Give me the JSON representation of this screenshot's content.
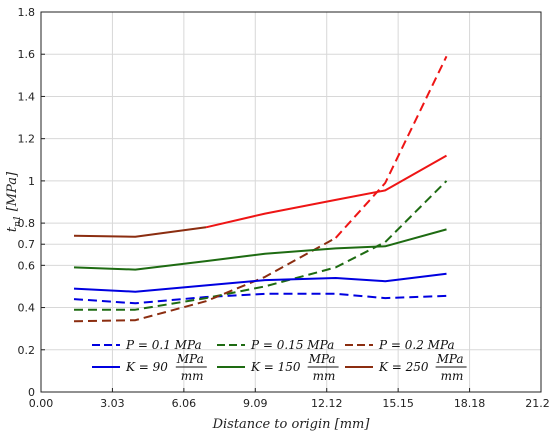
{
  "chart_data": {
    "type": "line",
    "title": "",
    "xlabel": "Distance to origin [mm]",
    "ylabel_main": "t",
    "ylabel_sub": "n1",
    "ylabel_unit": "[MPa]",
    "xlim": [
      0,
      21.21
    ],
    "ylim": [
      0,
      1.8
    ],
    "x_ticks": [
      "0.00",
      "3.03",
      "6.06",
      "9.09",
      "12.12",
      "15.15",
      "18.18",
      "21.21"
    ],
    "x_tick_values": [
      0,
      3.03,
      6.06,
      9.09,
      12.12,
      15.15,
      18.18,
      21.21
    ],
    "y_ticks": [
      "0",
      "0.2",
      "0.4",
      "0.6",
      "0.7",
      "0.8",
      "1",
      "1.2",
      "1.4",
      "1.6",
      "1.8"
    ],
    "y_tick_values": [
      0,
      0.2,
      0.4,
      0.6,
      0.7,
      0.8,
      1.0,
      1.2,
      1.4,
      1.6,
      1.8
    ],
    "grid": true,
    "legend_position": "bottom-left",
    "series": [
      {
        "name": "P = 0.1 MPa",
        "legend_label": "P = 0.1 MPa",
        "color": "#0000e0",
        "dash": true,
        "x": [
          1.4,
          4.0,
          7.0,
          9.5,
          12.5,
          14.6,
          17.2
        ],
        "y": [
          0.44,
          0.42,
          0.45,
          0.465,
          0.465,
          0.445,
          0.455
        ]
      },
      {
        "name": "P = 0.15 MPa",
        "legend_label": "P = 0.15 MPa",
        "color": "#1e6b12",
        "dash": true,
        "x": [
          1.4,
          4.0,
          7.0,
          9.5,
          12.5,
          14.6,
          17.2
        ],
        "y": [
          0.39,
          0.39,
          0.445,
          0.5,
          0.59,
          0.71,
          1.0
        ]
      },
      {
        "name": "P = 0.2 MPa",
        "legend_label": "P = 0.2 MPa",
        "color": "#8b2d10",
        "dash": true,
        "x": [
          1.4,
          4.0,
          7.0,
          9.5,
          12.5
        ],
        "y": [
          0.335,
          0.34,
          0.43,
          0.545,
          0.73
        ]
      },
      {
        "name": "P = 0.2 MPa (upper)",
        "legend_label": "",
        "color": "#ee1515",
        "dash": true,
        "x": [
          12.5,
          14.6,
          17.2
        ],
        "y": [
          0.73,
          0.99,
          1.59
        ]
      },
      {
        "name": "K = 90 MPa/mm",
        "legend_label": "K = 90",
        "color": "#0000e0",
        "dash": false,
        "x": [
          1.4,
          4.0,
          7.0,
          9.5,
          12.5,
          14.6,
          17.2
        ],
        "y": [
          0.49,
          0.475,
          0.505,
          0.53,
          0.54,
          0.525,
          0.56
        ]
      },
      {
        "name": "K = 150 MPa/mm",
        "legend_label": "K = 150",
        "color": "#1e6b12",
        "dash": false,
        "x": [
          1.4,
          4.0,
          7.0,
          9.5,
          12.5,
          14.6,
          17.2
        ],
        "y": [
          0.59,
          0.58,
          0.62,
          0.655,
          0.68,
          0.69,
          0.77
        ]
      },
      {
        "name": "K = 250 MPa/mm",
        "legend_label": "K = 250",
        "color": "#8b2d10",
        "dash": false,
        "x": [
          1.4,
          4.0,
          7.0
        ],
        "y": [
          0.74,
          0.735,
          0.78
        ]
      },
      {
        "name": "K = 250 MPa/mm (upper)",
        "legend_label": "",
        "color": "#ee1515",
        "dash": false,
        "x": [
          7.0,
          9.5,
          12.5,
          14.6,
          17.2
        ],
        "y": [
          0.78,
          0.845,
          0.91,
          0.955,
          1.12
        ]
      }
    ],
    "legend": {
      "row1": [
        {
          "label": "P = 0.1 MPa",
          "color": "#0000e0",
          "dash": true
        },
        {
          "label": "P = 0.15 MPa",
          "color": "#1e6b12",
          "dash": true
        },
        {
          "label": "P = 0.2 MPa",
          "color": "#8b2d10",
          "dash": true
        }
      ],
      "row2": [
        {
          "label": "K = 90",
          "frac_num": "MPa",
          "frac_den": "mm",
          "color": "#0000e0",
          "dash": false
        },
        {
          "label": "K = 150",
          "frac_num": "MPa",
          "frac_den": "mm",
          "color": "#1e6b12",
          "dash": false
        },
        {
          "label": "K = 250",
          "frac_num": "MPa",
          "frac_den": "mm",
          "color": "#8b2d10",
          "dash": false
        }
      ]
    }
  }
}
